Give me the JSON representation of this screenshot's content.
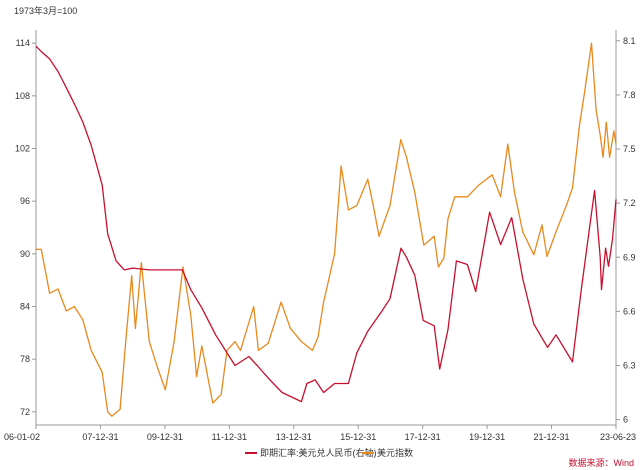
{
  "chart_data": {
    "type": "line",
    "unit_label": "1973年3月=100",
    "source": "数据来源：Wind",
    "x_tick_labels": [
      "06-01-02",
      "07-12-31",
      "09-12-31",
      "11-12-31",
      "13-12-31",
      "15-12-31",
      "17-12-31",
      "19-12-31",
      "21-12-31",
      "23-06-23"
    ],
    "left_axis": {
      "ticks": [
        72,
        78,
        84,
        90,
        96,
        102,
        108,
        114
      ],
      "ylim": [
        70.5,
        115.5
      ]
    },
    "right_axis": {
      "ticks": [
        "6",
        "6.3",
        "6.6",
        "6.9",
        "7.2",
        "7.5",
        "7.8",
        "8.1"
      ],
      "ylim": [
        5.97,
        8.16
      ]
    },
    "grid": false,
    "legend_position": "bottom",
    "series": [
      {
        "name": "即期汇率:美元兑人民币(右轴)",
        "axis": "right",
        "color": "#c8102e",
        "values": [
          [
            "2006-01-02",
            8.07
          ],
          [
            "2006-03-01",
            8.04
          ],
          [
            "2006-06-01",
            8.0
          ],
          [
            "2006-09-01",
            7.93
          ],
          [
            "2006-12-01",
            7.84
          ],
          [
            "2007-03-01",
            7.75
          ],
          [
            "2007-06-01",
            7.65
          ],
          [
            "2007-09-01",
            7.52
          ],
          [
            "2007-12-31",
            7.3
          ],
          [
            "2008-03-01",
            7.03
          ],
          [
            "2008-06-01",
            6.88
          ],
          [
            "2008-09-01",
            6.83
          ],
          [
            "2008-12-01",
            6.84
          ],
          [
            "2009-06-01",
            6.83
          ],
          [
            "2009-12-31",
            6.83
          ],
          [
            "2010-06-01",
            6.83
          ],
          [
            "2010-09-01",
            6.72
          ],
          [
            "2010-12-31",
            6.62
          ],
          [
            "2011-06-01",
            6.47
          ],
          [
            "2011-12-31",
            6.3
          ],
          [
            "2012-06-01",
            6.35
          ],
          [
            "2012-09-01",
            6.3
          ],
          [
            "2012-12-31",
            6.23
          ],
          [
            "2013-06-01",
            6.15
          ],
          [
            "2013-12-31",
            6.1
          ],
          [
            "2014-03-01",
            6.2
          ],
          [
            "2014-06-01",
            6.22
          ],
          [
            "2014-09-01",
            6.15
          ],
          [
            "2014-12-31",
            6.2
          ],
          [
            "2015-06-01",
            6.2
          ],
          [
            "2015-09-01",
            6.37
          ],
          [
            "2015-12-31",
            6.49
          ],
          [
            "2016-06-01",
            6.6
          ],
          [
            "2016-09-01",
            6.67
          ],
          [
            "2016-12-31",
            6.95
          ],
          [
            "2017-03-01",
            6.9
          ],
          [
            "2017-06-01",
            6.8
          ],
          [
            "2017-09-01",
            6.55
          ],
          [
            "2017-12-31",
            6.52
          ],
          [
            "2018-03-01",
            6.28
          ],
          [
            "2018-06-01",
            6.5
          ],
          [
            "2018-09-01",
            6.88
          ],
          [
            "2018-12-31",
            6.86
          ],
          [
            "2019-04-01",
            6.71
          ],
          [
            "2019-09-01",
            7.15
          ],
          [
            "2019-12-31",
            6.97
          ],
          [
            "2020-05-01",
            7.12
          ],
          [
            "2020-09-01",
            6.78
          ],
          [
            "2020-12-31",
            6.53
          ],
          [
            "2021-06-01",
            6.4
          ],
          [
            "2021-09-01",
            6.47
          ],
          [
            "2021-12-31",
            6.37
          ],
          [
            "2022-03-01",
            6.32
          ],
          [
            "2022-06-01",
            6.7
          ],
          [
            "2022-09-01",
            7.05
          ],
          [
            "2022-10-31",
            7.27
          ],
          [
            "2022-12-31",
            6.9
          ],
          [
            "2023-01-15",
            6.72
          ],
          [
            "2023-03-01",
            6.95
          ],
          [
            "2023-04-01",
            6.85
          ],
          [
            "2023-05-15",
            7.0
          ],
          [
            "2023-06-23",
            7.22
          ]
        ]
      },
      {
        "name": "美元指数",
        "axis": "left",
        "color": "#e8891d",
        "values": [
          [
            "2006-01-02",
            90.5
          ],
          [
            "2006-03-01",
            90.5
          ],
          [
            "2006-06-01",
            85.5
          ],
          [
            "2006-09-01",
            86.0
          ],
          [
            "2006-12-01",
            83.5
          ],
          [
            "2007-03-01",
            84.0
          ],
          [
            "2007-06-01",
            82.5
          ],
          [
            "2007-09-01",
            79.0
          ],
          [
            "2007-12-31",
            76.5
          ],
          [
            "2008-03-01",
            72.0
          ],
          [
            "2008-04-15",
            71.5
          ],
          [
            "2008-07-15",
            72.3
          ],
          [
            "2008-09-15",
            80.0
          ],
          [
            "2008-11-20",
            87.5
          ],
          [
            "2008-12-31",
            81.5
          ],
          [
            "2009-03-05",
            89.0
          ],
          [
            "2009-06-01",
            80.0
          ],
          [
            "2009-09-01",
            77.0
          ],
          [
            "2009-11-25",
            74.5
          ],
          [
            "2010-03-01",
            80.0
          ],
          [
            "2010-06-07",
            88.5
          ],
          [
            "2010-09-01",
            83.0
          ],
          [
            "2010-11-04",
            76.0
          ],
          [
            "2010-12-31",
            79.5
          ],
          [
            "2011-05-01",
            73.0
          ],
          [
            "2011-08-01",
            74.0
          ],
          [
            "2011-10-04",
            79.0
          ],
          [
            "2011-12-31",
            80.0
          ],
          [
            "2012-03-01",
            79.0
          ],
          [
            "2012-07-24",
            84.0
          ],
          [
            "2012-09-14",
            79.0
          ],
          [
            "2012-12-31",
            79.8
          ],
          [
            "2013-05-22",
            84.5
          ],
          [
            "2013-09-01",
            81.5
          ],
          [
            "2013-12-31",
            80.0
          ],
          [
            "2014-05-01",
            79.0
          ],
          [
            "2014-07-01",
            80.5
          ],
          [
            "2014-09-01",
            84.5
          ],
          [
            "2014-12-31",
            90.0
          ],
          [
            "2015-03-13",
            100.0
          ],
          [
            "2015-06-01",
            95.0
          ],
          [
            "2015-09-01",
            95.5
          ],
          [
            "2015-12-31",
            98.5
          ],
          [
            "2016-03-01",
            95.5
          ],
          [
            "2016-05-03",
            92.0
          ],
          [
            "2016-09-01",
            95.5
          ],
          [
            "2016-12-28",
            103.0
          ],
          [
            "2017-03-01",
            101.0
          ],
          [
            "2017-06-01",
            97.0
          ],
          [
            "2017-09-08",
            91.0
          ],
          [
            "2017-12-31",
            92.0
          ],
          [
            "2018-02-15",
            88.5
          ],
          [
            "2018-04-15",
            89.5
          ],
          [
            "2018-06-01",
            94.0
          ],
          [
            "2018-08-15",
            96.5
          ],
          [
            "2018-12-31",
            96.5
          ],
          [
            "2019-05-01",
            97.8
          ],
          [
            "2019-09-30",
            99.0
          ],
          [
            "2019-12-31",
            96.5
          ],
          [
            "2020-03-20",
            102.5
          ],
          [
            "2020-06-01",
            97.0
          ],
          [
            "2020-09-01",
            92.5
          ],
          [
            "2020-12-31",
            89.9
          ],
          [
            "2021-03-31",
            93.3
          ],
          [
            "2021-05-25",
            89.7
          ],
          [
            "2021-09-01",
            92.5
          ],
          [
            "2021-12-31",
            95.7
          ],
          [
            "2022-03-01",
            97.5
          ],
          [
            "2022-05-15",
            104.5
          ],
          [
            "2022-07-14",
            108.5
          ],
          [
            "2022-09-27",
            114.0
          ],
          [
            "2022-11-15",
            106.5
          ],
          [
            "2022-12-31",
            103.5
          ],
          [
            "2023-02-01",
            101.0
          ],
          [
            "2023-03-08",
            105.0
          ],
          [
            "2023-04-14",
            101.0
          ],
          [
            "2023-05-31",
            104.0
          ],
          [
            "2023-06-23",
            102.5
          ]
        ]
      }
    ]
  }
}
